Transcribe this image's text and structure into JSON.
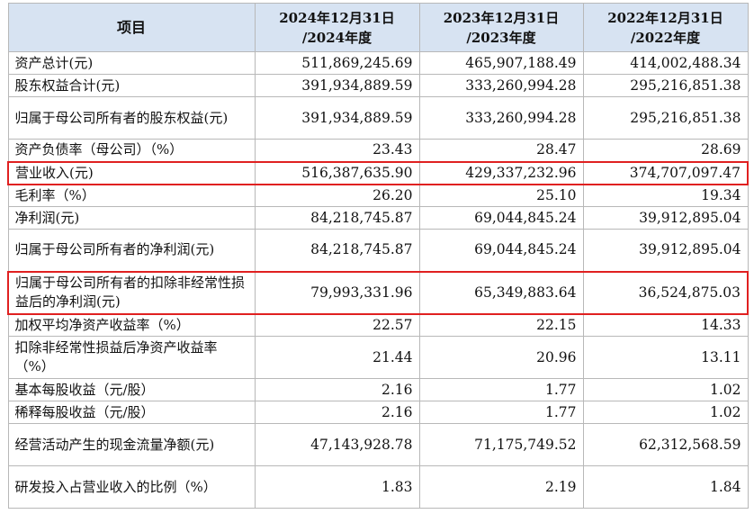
{
  "header": {
    "item": "项目",
    "columns": [
      [
        "2024年12月31日",
        "/2024年度"
      ],
      [
        "2023年12月31日",
        "/2023年度"
      ],
      [
        "2022年12月31日",
        "/2022年度"
      ]
    ]
  },
  "rows": [
    {
      "label": "资产总计(元)",
      "values": [
        "511,869,245.69",
        "465,907,188.49",
        "414,002,488.34"
      ],
      "highlighted": false
    },
    {
      "label": "股东权益合计(元)",
      "values": [
        "391,934,889.59",
        "333,260,994.28",
        "295,216,851.38"
      ],
      "highlighted": false
    },
    {
      "label": "归属于母公司所有者的股东权益(元)",
      "values": [
        "391,934,889.59",
        "333,260,994.28",
        "295,216,851.38"
      ],
      "highlighted": false
    },
    {
      "label": "资产负债率（母公司）（%）",
      "values": [
        "23.43",
        "28.47",
        "28.69"
      ],
      "highlighted": false
    },
    {
      "label": "营业收入(元)",
      "values": [
        "516,387,635.90",
        "429,337,232.96",
        "374,707,097.47"
      ],
      "highlighted": true
    },
    {
      "label": "毛利率（%）",
      "values": [
        "26.20",
        "25.10",
        "19.34"
      ],
      "highlighted": false
    },
    {
      "label": "净利润(元)",
      "values": [
        "84,218,745.87",
        "69,044,845.24",
        "39,912,895.04"
      ],
      "highlighted": false
    },
    {
      "label": "归属于母公司所有者的净利润(元)",
      "values": [
        "84,218,745.87",
        "69,044,845.24",
        "39,912,895.04"
      ],
      "highlighted": false
    },
    {
      "label": "归属于母公司所有者的扣除非经常性损益后的净利润(元)",
      "values": [
        "79,993,331.96",
        "65,349,883.64",
        "36,524,875.03"
      ],
      "highlighted": true
    },
    {
      "label": "加权平均净资产收益率（%）",
      "values": [
        "22.57",
        "22.15",
        "14.33"
      ],
      "highlighted": false
    },
    {
      "label": "扣除非经常性损益后净资产收益率（%）",
      "values": [
        "21.44",
        "20.96",
        "13.11"
      ],
      "highlighted": false
    },
    {
      "label": "基本每股收益（元/股）",
      "values": [
        "2.16",
        "1.77",
        "1.02"
      ],
      "highlighted": false
    },
    {
      "label": "稀释每股收益（元/股）",
      "values": [
        "2.16",
        "1.77",
        "1.02"
      ],
      "highlighted": false
    },
    {
      "label": "经营活动产生的现金流量净额(元)",
      "values": [
        "47,143,928.78",
        "71,175,749.52",
        "62,312,568.59"
      ],
      "highlighted": false
    },
    {
      "label": "研发投入占营业收入的比例（%）",
      "values": [
        "1.83",
        "2.19",
        "1.84"
      ],
      "highlighted": false
    }
  ],
  "colors": {
    "header_bg": "#d7e3f2",
    "grid": "#b8b8b8",
    "highlight_border": "#e02020"
  }
}
